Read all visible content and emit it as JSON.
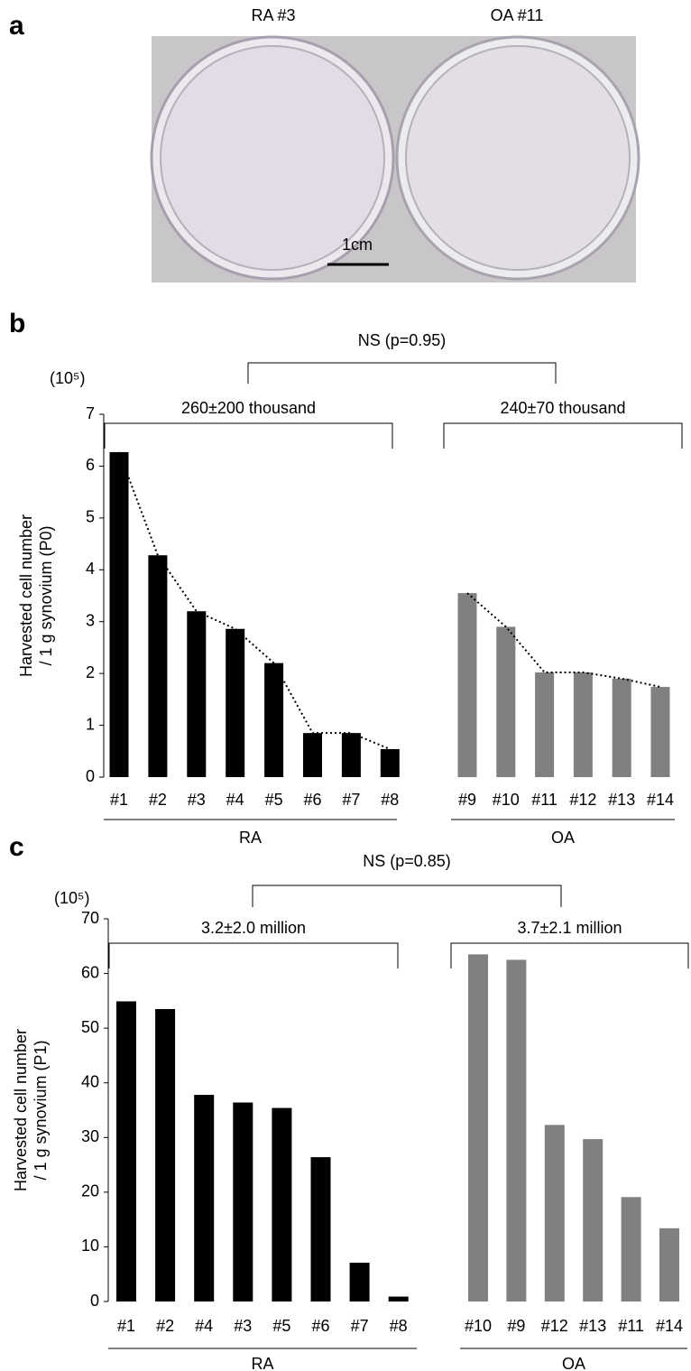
{
  "panel_a": {
    "letter": "a",
    "labels": [
      "RA #3",
      "OA #11"
    ],
    "scale_bar": "1cm"
  },
  "chart_data": [
    {
      "type": "bar",
      "panel": "b",
      "y_unit": "(10⁵)",
      "ylabel": [
        "Harvested cell number",
        "/ 1 g synovium (P0)"
      ],
      "ylim": [
        0,
        7
      ],
      "yticks": [
        0,
        1,
        2,
        3,
        4,
        5,
        6,
        7
      ],
      "comparison": "NS (p=0.95)",
      "trend_line": true,
      "groups": [
        {
          "name": "RA",
          "color": "#000000",
          "summary": "260±200 thousand",
          "categories": [
            "#1",
            "#2",
            "#3",
            "#4",
            "#5",
            "#6",
            "#7",
            "#8"
          ],
          "values": [
            6.27,
            4.28,
            3.2,
            2.86,
            2.2,
            0.85,
            0.85,
            0.54
          ]
        },
        {
          "name": "OA",
          "color": "#808080",
          "summary": "240±70 thousand",
          "categories": [
            "#9",
            "#10",
            "#11",
            "#12",
            "#13",
            "#14"
          ],
          "values": [
            3.55,
            2.9,
            2.02,
            2.02,
            1.9,
            1.74
          ]
        }
      ]
    },
    {
      "type": "bar",
      "panel": "c",
      "y_unit": "(10⁵)",
      "ylabel": [
        "Harvested cell number",
        "/ 1 g synovium (P1)"
      ],
      "ylim": [
        0,
        70
      ],
      "yticks": [
        0,
        10,
        20,
        30,
        40,
        50,
        60,
        70
      ],
      "comparison": "NS (p=0.85)",
      "trend_line": false,
      "groups": [
        {
          "name": "RA",
          "color": "#000000",
          "summary": "3.2±2.0 million",
          "categories": [
            "#1",
            "#2",
            "#4",
            "#3",
            "#5",
            "#6",
            "#7",
            "#8"
          ],
          "values": [
            54.9,
            53.5,
            37.8,
            36.4,
            35.4,
            26.4,
            7.1,
            0.9
          ]
        },
        {
          "name": "OA",
          "color": "#808080",
          "summary": "3.7±2.1 million",
          "categories": [
            "#10",
            "#9",
            "#12",
            "#13",
            "#11",
            "#14"
          ],
          "values": [
            63.5,
            62.5,
            32.3,
            29.7,
            19.1,
            13.4
          ]
        }
      ]
    }
  ]
}
